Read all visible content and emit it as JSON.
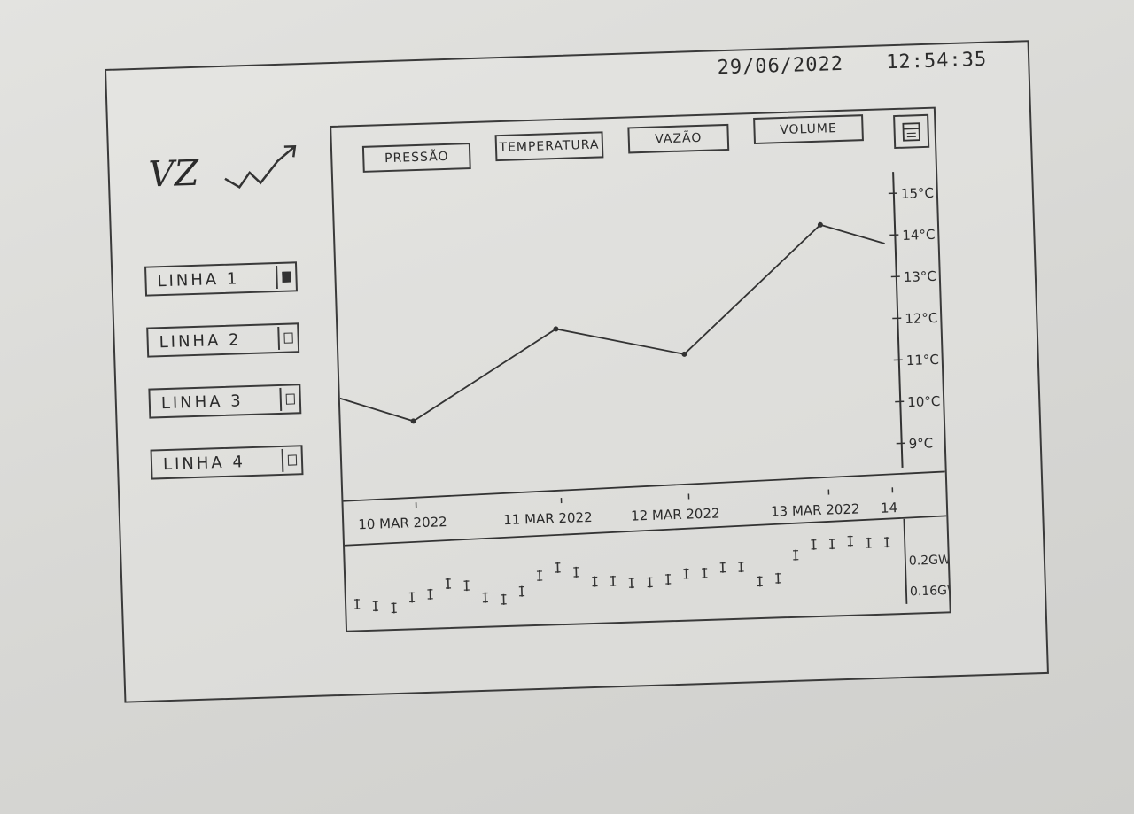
{
  "header": {
    "date": "29/06/2022",
    "time": "12:54:35"
  },
  "logo": {
    "text": "VZ"
  },
  "sidebar": {
    "items": [
      {
        "label": "LINHA 1",
        "checked": true
      },
      {
        "label": "LINHA 2",
        "checked": false
      },
      {
        "label": "LINHA 3",
        "checked": false
      },
      {
        "label": "LINHA 4",
        "checked": false
      }
    ]
  },
  "tabs": [
    {
      "label": "PRESSÃO"
    },
    {
      "label": "TEMPERATURA"
    },
    {
      "label": "VAZÃO"
    },
    {
      "label": "VOLUME"
    }
  ],
  "icons": {
    "calendar": "calendar-icon",
    "logo_arrow": "trend-up-icon"
  },
  "chart_data": [
    {
      "type": "line",
      "x": [
        "",
        "10 MAR 2022",
        "11 MAR 2022",
        "12 MAR 2022",
        "13 MAR 2022",
        "14"
      ],
      "values": [
        10.5,
        9.9,
        12.0,
        11.3,
        14.3,
        13.8
      ],
      "y_ticks": [
        "15°C",
        "14°C",
        "13°C",
        "12°C",
        "11°C",
        "10°C",
        "9°C"
      ],
      "ylim": [
        8.5,
        15.3
      ],
      "x_tick_labels": [
        "10 MAR 2022",
        "11 MAR 2022",
        "12 MAR 2022",
        "13 MAR 2022",
        "14"
      ]
    },
    {
      "type": "scatter",
      "values": [
        0.16,
        0.155,
        0.15,
        0.17,
        0.175,
        0.195,
        0.19,
        0.165,
        0.16,
        0.175,
        0.205,
        0.22,
        0.21,
        0.19,
        0.19,
        0.185,
        0.185,
        0.19,
        0.2,
        0.2,
        0.21,
        0.21,
        0.18,
        0.185,
        0.23,
        0.25,
        0.25,
        0.255,
        0.25,
        0.25
      ],
      "y_ticks": [
        "0.2GW",
        "0.16GW"
      ],
      "ylim": [
        0.14,
        0.26
      ]
    }
  ]
}
